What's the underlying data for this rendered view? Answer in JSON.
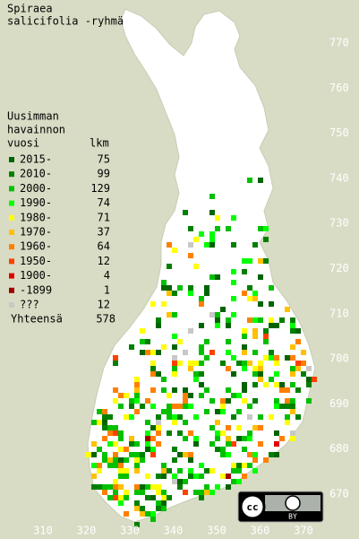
{
  "title": [
    "Spiraea",
    "salicifolia -ryhmä"
  ],
  "legend": {
    "header": [
      "Uusimman",
      "havainnon"
    ],
    "year_heading": "vuosi",
    "count_heading": "lkm",
    "rows": [
      {
        "label": "2015-",
        "count": 75,
        "color": "#006400"
      },
      {
        "label": "2010-",
        "count": 99,
        "color": "#008000"
      },
      {
        "label": "2000-",
        "count": 129,
        "color": "#00c000"
      },
      {
        "label": "1990-",
        "count": 74,
        "color": "#00ff00"
      },
      {
        "label": "1980-",
        "count": 71,
        "color": "#ffff00"
      },
      {
        "label": "1970-",
        "count": 37,
        "color": "#ffc000"
      },
      {
        "label": "1960-",
        "count": 64,
        "color": "#ff8000"
      },
      {
        "label": "1950-",
        "count": 12,
        "color": "#ff4000"
      },
      {
        "label": "1900-",
        "count": 4,
        "color": "#e00000"
      },
      {
        "label": "-1899",
        "count": 1,
        "color": "#a00000"
      },
      {
        "label": "???",
        "count": 12,
        "color": "#c8c8c8"
      }
    ],
    "total_label": "Yhteensä",
    "total": 578
  },
  "grid_labels": {
    "north": [
      770,
      760,
      750,
      740,
      730,
      720,
      710,
      700,
      690,
      680,
      670
    ],
    "east": [
      310,
      320,
      330,
      340,
      350,
      360,
      370
    ]
  },
  "badge": "BY"
}
